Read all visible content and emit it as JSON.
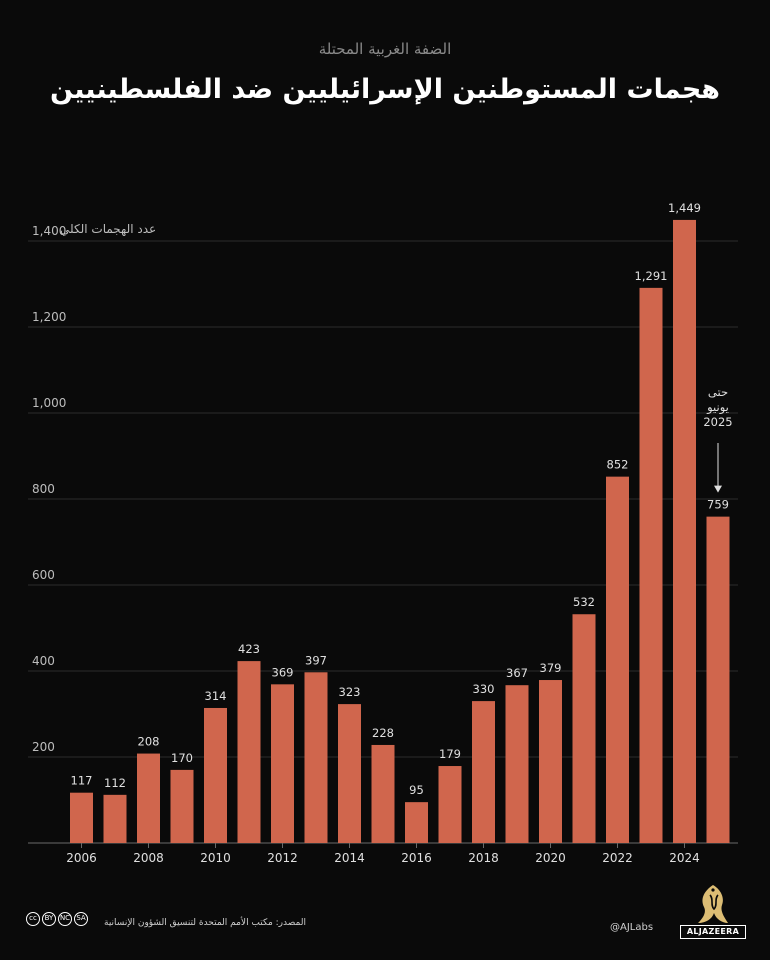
{
  "header": {
    "subtitle": "الضفة الغربية المحتلة",
    "title": "هجمات المستوطنين الإسرائيليين ضد الفلسطينيين"
  },
  "chart_data": {
    "type": "bar",
    "title": "هجمات المستوطنين الإسرائيليين ضد الفلسطينيين",
    "ylabel": "عدد الهجمات الكلي",
    "xlabel": "",
    "categories": [
      "2006",
      "2007",
      "2008",
      "2009",
      "2010",
      "2011",
      "2012",
      "2013",
      "2014",
      "2015",
      "2016",
      "2017",
      "2018",
      "2019",
      "2020",
      "2021",
      "2022",
      "2023",
      "2024",
      "2025"
    ],
    "values": [
      117,
      112,
      208,
      170,
      314,
      423,
      369,
      397,
      323,
      228,
      95,
      179,
      330,
      367,
      379,
      532,
      852,
      1291,
      1449,
      759
    ],
    "value_labels": [
      "117",
      "112",
      "208",
      "170",
      "314",
      "423",
      "369",
      "397",
      "323",
      "228",
      "95",
      "179",
      "330",
      "367",
      "379",
      "532",
      "852",
      "1,291",
      "1,449",
      "759"
    ],
    "x_tick_labels": [
      "2006",
      "2008",
      "2010",
      "2012",
      "2014",
      "2016",
      "2018",
      "2020",
      "2022",
      "2024"
    ],
    "y_ticks": [
      200,
      400,
      600,
      800,
      1000,
      1200,
      1400
    ],
    "y_tick_labels": [
      "200",
      "400",
      "600",
      "800",
      "1,000",
      "1,200",
      "1,400"
    ],
    "ylim": [
      0,
      1400
    ],
    "grid": true,
    "bar_color": "#d0664d",
    "annotation": {
      "lines": [
        "حتى",
        "يونيو",
        "2025"
      ],
      "target_category": "2025"
    }
  },
  "footer": {
    "source": "المصدر: مكتب الأمم المتحدة لتنسيق الشؤون الإنسانية",
    "handle": "@AJLabs",
    "brand": "ALJAZEERA",
    "license_badges": [
      "BY",
      "NC",
      "SA"
    ]
  }
}
